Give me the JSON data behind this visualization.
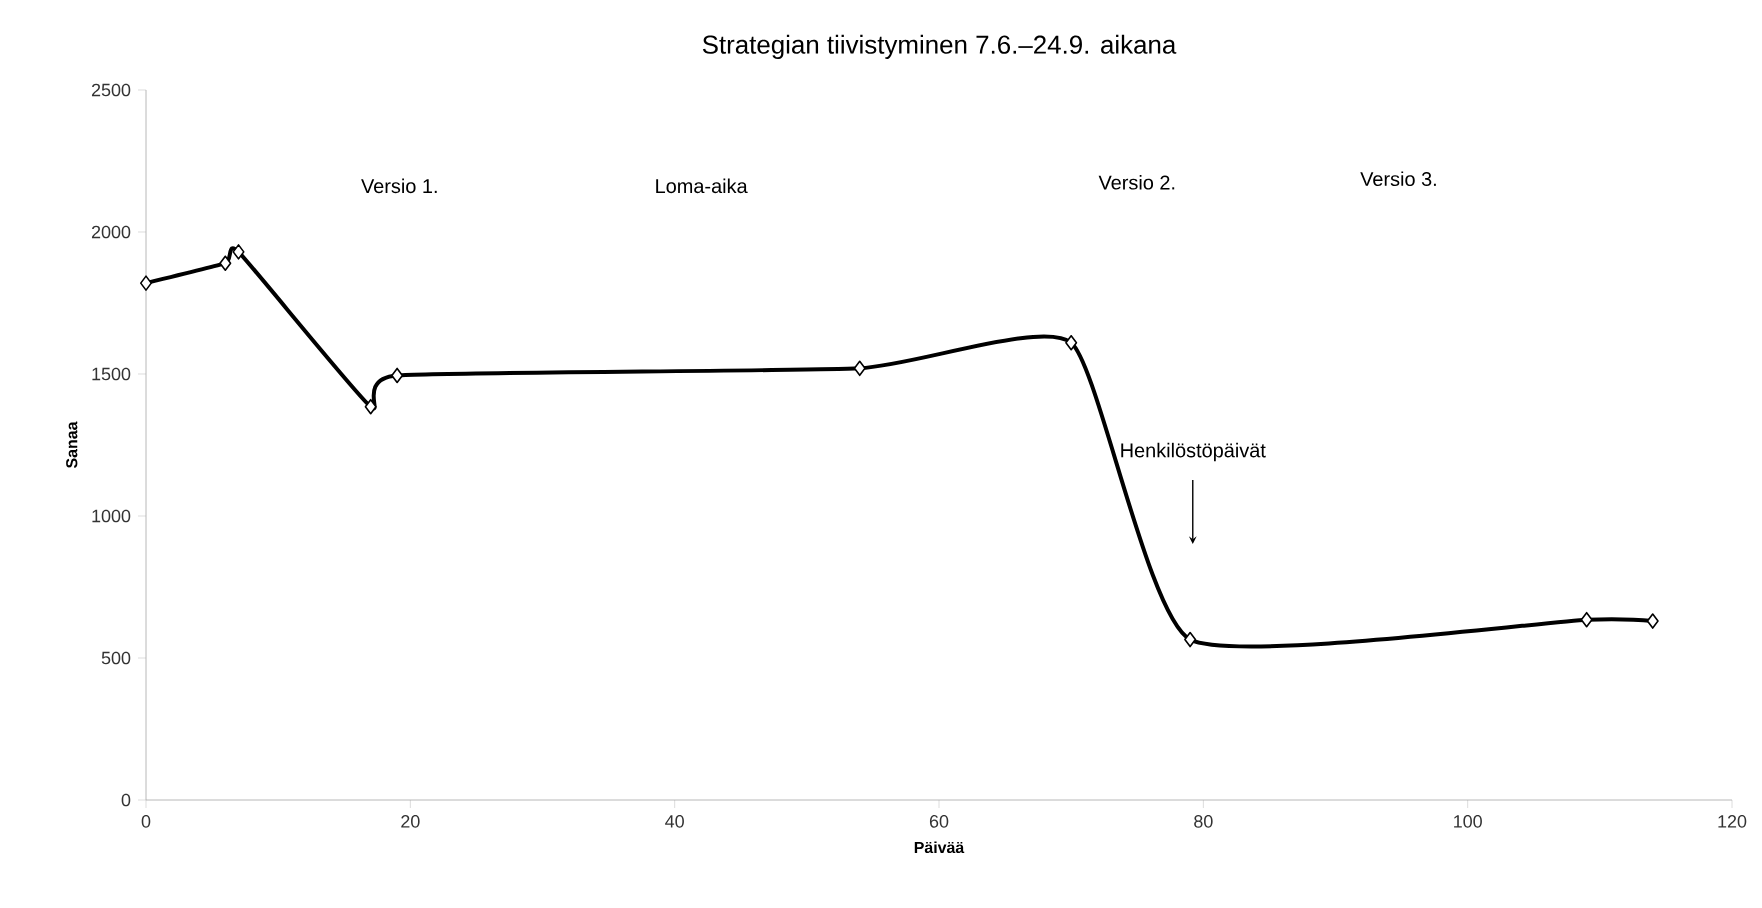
{
  "chart_data": {
    "type": "line",
    "title": "Strategian tiivistyminen 7.6.–24.9. aikana",
    "xlabel": "Päivää",
    "ylabel": "Sanaa",
    "x": [
      0,
      6,
      7,
      17,
      19,
      54,
      70,
      79,
      109,
      114
    ],
    "series": [
      {
        "color": "#000000",
        "values": [
          1820,
          1890,
          1930,
          1385,
          1495,
          1520,
          1610,
          565,
          635,
          630
        ]
      }
    ],
    "xlim": [
      0,
      120
    ],
    "xticks": [
      0,
      20,
      40,
      60,
      80,
      100,
      120
    ],
    "ylim": [
      0,
      2500
    ],
    "yticks": [
      0,
      500,
      1000,
      1500,
      2000,
      2500
    ],
    "marker": "diamond",
    "line_style": "solid",
    "grid": false,
    "annotations": [
      "Versio 1.",
      "Loma-aika",
      "Versio 2.",
      "Versio 3.",
      "Henkilöstöpäivät"
    ]
  }
}
